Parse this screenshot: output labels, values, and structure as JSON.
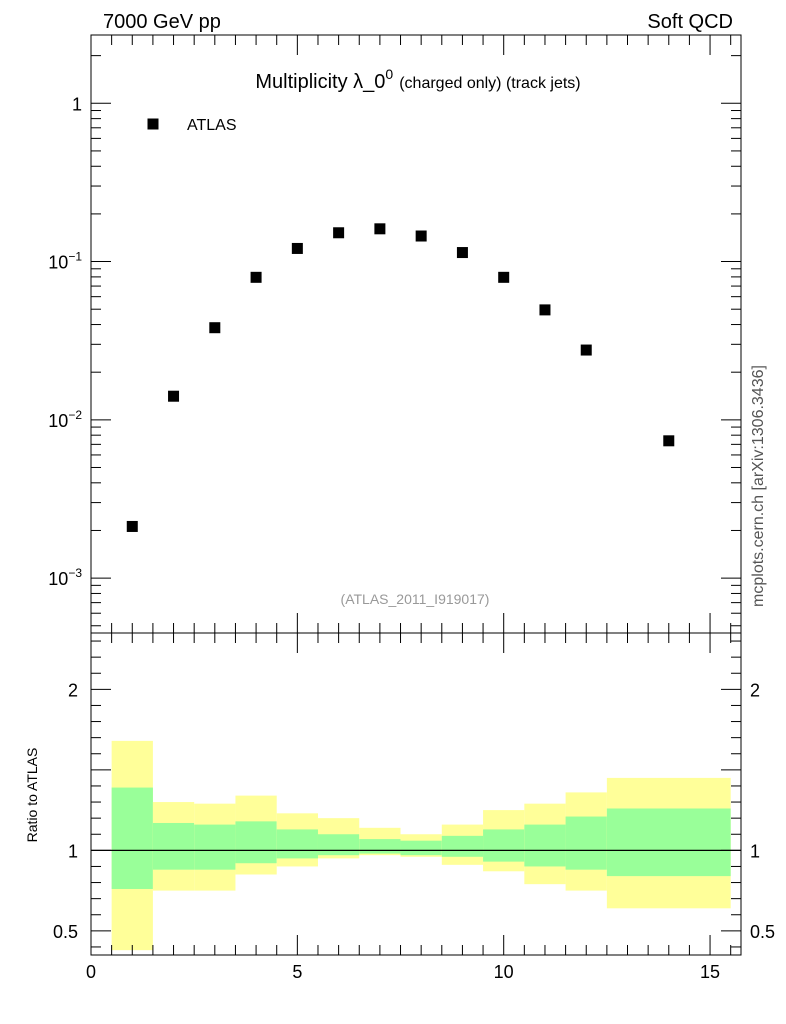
{
  "header": {
    "left": "7000 GeV pp",
    "right": "Soft QCD"
  },
  "side_label": "mcplots.cern.ch [arXiv:1306.3436]",
  "chart_data": [
    {
      "type": "scatter",
      "title_main": "Multiplicity λ_0",
      "title_sup": "0",
      "title_rest": "(charged only) (track jets)",
      "analysis_label": "(ATLAS_2011_I919017)",
      "legend": [
        "ATLAS"
      ],
      "legend_position": "top-left",
      "y_scale": "log",
      "ylim": [
        0.00045,
        2.7
      ],
      "y_ticks": [
        {
          "value": 1,
          "base": "1",
          "exp": ""
        },
        {
          "value": 0.1,
          "base": "10",
          "exp": "−1"
        },
        {
          "value": 0.01,
          "base": "10",
          "exp": "−2"
        },
        {
          "value": 0.001,
          "base": "10",
          "exp": "−3"
        }
      ],
      "xlim": [
        0,
        15.75
      ],
      "series": [
        {
          "name": "ATLAS",
          "x": [
            1,
            2,
            3,
            4,
            5,
            6,
            7,
            8,
            9,
            10,
            11,
            12,
            14
          ],
          "y": [
            0.00212,
            0.0141,
            0.0382,
            0.0795,
            0.121,
            0.152,
            0.161,
            0.145,
            0.114,
            0.0795,
            0.0495,
            0.0276,
            0.00737
          ]
        }
      ]
    },
    {
      "type": "area",
      "ylabel": "Ratio to ATLAS",
      "ylim": [
        0.35,
        2.35
      ],
      "y_ticks": [
        2,
        1,
        0.5
      ],
      "y_tick_labels": [
        "2",
        "1",
        "0.5"
      ],
      "xlim": [
        0,
        15.75
      ],
      "x_ticks": [
        0,
        5,
        10,
        15
      ],
      "x_tick_labels": [
        "0",
        "5",
        "10",
        "15"
      ],
      "reference_line": 1,
      "band_colors": {
        "outer": "#ffff99",
        "inner": "#99ff99"
      },
      "bands": [
        {
          "x0": 0.5,
          "x1": 1.5,
          "outer": [
            0.38,
            1.68
          ],
          "inner": [
            0.76,
            1.39
          ]
        },
        {
          "x0": 1.5,
          "x1": 2.5,
          "outer": [
            0.75,
            1.3
          ],
          "inner": [
            0.88,
            1.17
          ]
        },
        {
          "x0": 2.5,
          "x1": 3.5,
          "outer": [
            0.75,
            1.29
          ],
          "inner": [
            0.88,
            1.16
          ]
        },
        {
          "x0": 3.5,
          "x1": 4.5,
          "outer": [
            0.85,
            1.34
          ],
          "inner": [
            0.92,
            1.18
          ]
        },
        {
          "x0": 4.5,
          "x1": 5.5,
          "outer": [
            0.9,
            1.23
          ],
          "inner": [
            0.95,
            1.13
          ]
        },
        {
          "x0": 5.5,
          "x1": 6.5,
          "outer": [
            0.95,
            1.2
          ],
          "inner": [
            0.97,
            1.1
          ]
        },
        {
          "x0": 6.5,
          "x1": 7.5,
          "outer": [
            0.97,
            1.14
          ],
          "inner": [
            0.98,
            1.07
          ]
        },
        {
          "x0": 7.5,
          "x1": 8.5,
          "outer": [
            0.96,
            1.1
          ],
          "inner": [
            0.97,
            1.06
          ]
        },
        {
          "x0": 8.5,
          "x1": 9.5,
          "outer": [
            0.91,
            1.16
          ],
          "inner": [
            0.96,
            1.09
          ]
        },
        {
          "x0": 9.5,
          "x1": 10.5,
          "outer": [
            0.87,
            1.25
          ],
          "inner": [
            0.93,
            1.13
          ]
        },
        {
          "x0": 10.5,
          "x1": 11.5,
          "outer": [
            0.79,
            1.29
          ],
          "inner": [
            0.9,
            1.16
          ]
        },
        {
          "x0": 11.5,
          "x1": 12.5,
          "outer": [
            0.75,
            1.36
          ],
          "inner": [
            0.88,
            1.21
          ]
        },
        {
          "x0": 12.5,
          "x1": 15.5,
          "outer": [
            0.64,
            1.45
          ],
          "inner": [
            0.84,
            1.26
          ]
        }
      ]
    }
  ]
}
